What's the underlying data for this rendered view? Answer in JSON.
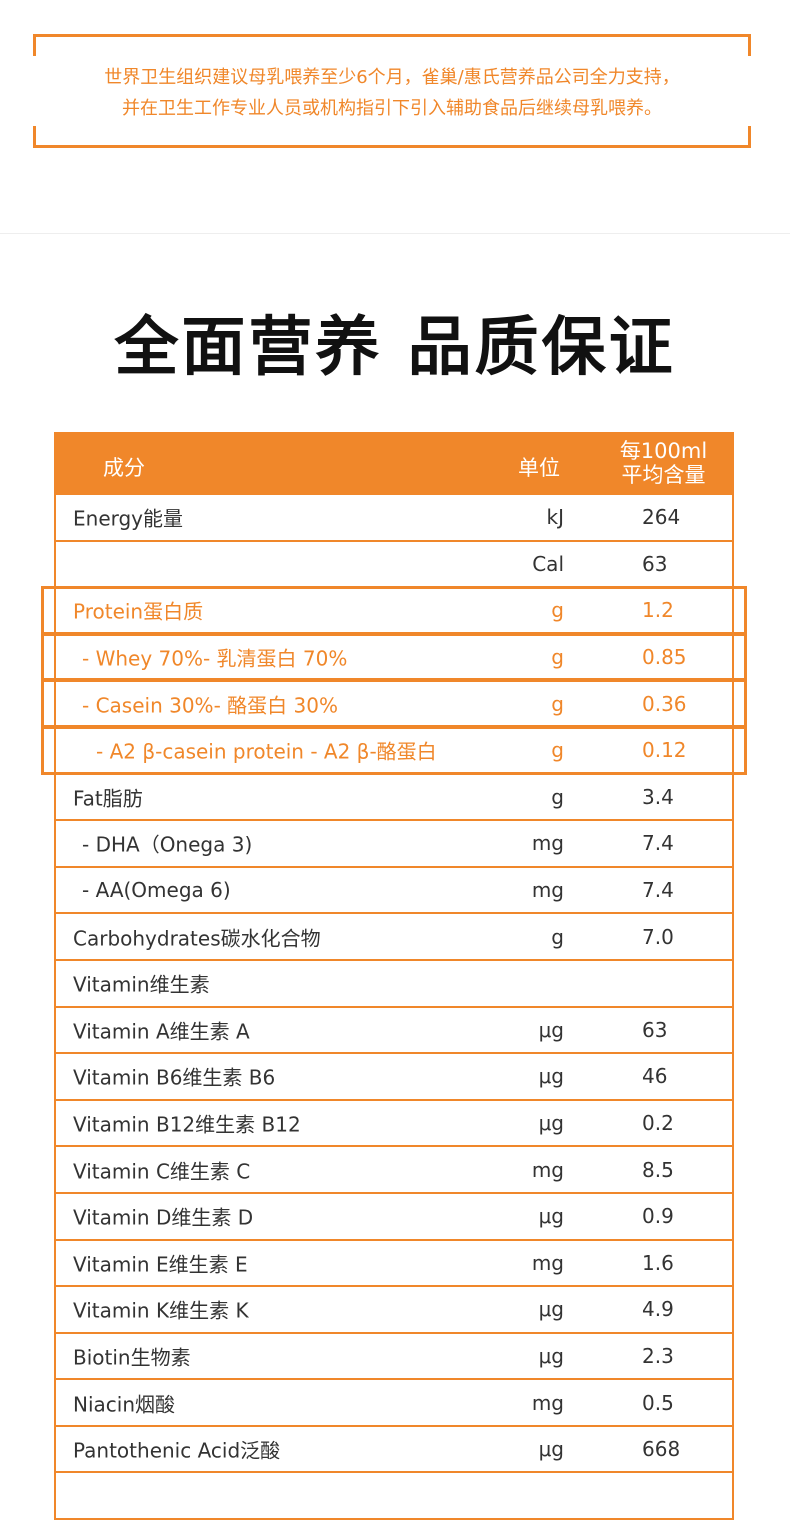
{
  "notice": {
    "lines": [
      "世界卫生组织建议母乳喂养至少6个月，雀巢/惠氏营养品公司全力支持，",
      "并在卫生工作专业人员或机构指引下引入辅助食品后继续母乳喂养。"
    ]
  },
  "title": "全面营养 品质保证",
  "table": {
    "header": [
      "成分",
      "单位",
      "每100ml\n平均含量"
    ],
    "rows": [
      {
        "name": "Energy能量",
        "unit": "kJ",
        "value": "264",
        "level": 0
      },
      {
        "name": null,
        "unit": "Cal",
        "value": "63",
        "level": 0
      },
      {
        "name": "Protein蛋白质",
        "unit": "g",
        "value": "1.2",
        "level": 0,
        "highlight": true
      },
      {
        "name": "- Whey 70%- 乳清蛋白 70%",
        "unit": "g",
        "value": "0.85",
        "level": 1,
        "highlight": true
      },
      {
        "name": "- Casein 30%- 酪蛋白 30%",
        "unit": "g",
        "value": "0.36",
        "level": 1,
        "highlight": true
      },
      {
        "name": "- A2 β-casein protein - A2 β-酪蛋白",
        "unit": "g",
        "value": "0.12",
        "level": 2,
        "highlight": true
      },
      {
        "name": "Fat脂肪",
        "unit": "g",
        "value": "3.4",
        "level": 0
      },
      {
        "name": "- DHA（Onega 3)",
        "unit": "mg",
        "value": "7.4",
        "level": 1
      },
      {
        "name": "- AA(Omega 6)",
        "unit": "mg",
        "value": "7.4",
        "level": 1
      },
      {
        "name": "Carbohydrates碳水化合物",
        "unit": "g",
        "value": "7.0",
        "level": 0
      },
      {
        "name": "Vitamin维生素",
        "unit": null,
        "value": null,
        "level": 0
      },
      {
        "name": "Vitamin A维生素 A",
        "unit": "μg",
        "value": "63",
        "level": 0
      },
      {
        "name": "Vitamin B6维生素 B6",
        "unit": "μg",
        "value": "46",
        "level": 0
      },
      {
        "name": "Vitamin B12维生素 B12",
        "unit": "μg",
        "value": "0.2",
        "level": 0
      },
      {
        "name": "Vitamin C维生素 C",
        "unit": "mg",
        "value": "8.5",
        "level": 0
      },
      {
        "name": "Vitamin D维生素 D",
        "unit": "μg",
        "value": "0.9",
        "level": 0
      },
      {
        "name": "Vitamin E维生素 E",
        "unit": "mg",
        "value": "1.6",
        "level": 0
      },
      {
        "name": "Vitamin K维生素 K",
        "unit": "μg",
        "value": "4.9",
        "level": 0
      },
      {
        "name": "Biotin生物素",
        "unit": "μg",
        "value": "2.3",
        "level": 0
      },
      {
        "name": "Niacin烟酸",
        "unit": "mg",
        "value": "0.5",
        "level": 0
      },
      {
        "name": "Pantothenic Acid泛酸",
        "unit": "μg",
        "value": "668",
        "level": 0
      }
    ]
  }
}
